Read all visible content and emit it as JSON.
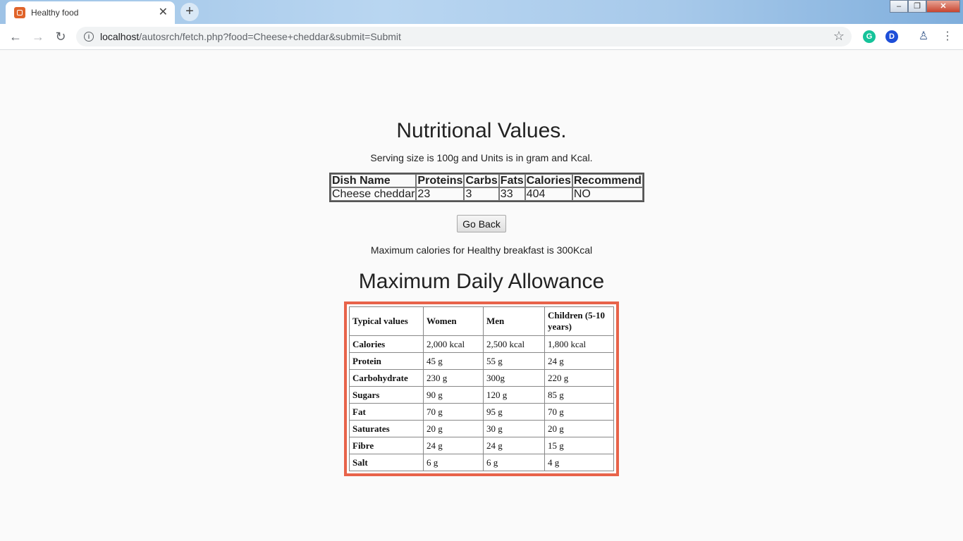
{
  "browser": {
    "tab_title": "Healthy food",
    "url_host": "localhost",
    "url_path": "/autosrch/fetch.php?food=Cheese+cheddar&submit=Submit"
  },
  "page": {
    "title": "Nutritional Values.",
    "serving_note": "Serving size is 100g and Units is in gram and Kcal.",
    "nutrition_table": {
      "headers": [
        "Dish Name",
        "Proteins",
        "Carbs",
        "Fats",
        "Calories",
        "Recommend"
      ],
      "row": [
        "Cheese cheddar",
        "23",
        "3",
        "33",
        "404",
        "NO"
      ]
    },
    "go_back_label": "Go Back",
    "max_calories_note": "Maximum calories for Healthy breakfast is 300Kcal",
    "allowance_title": "Maximum Daily Allowance",
    "allowance_table": {
      "headers": [
        "Typical values",
        "Women",
        "Men",
        "Children (5-10 years)"
      ],
      "rows": [
        [
          "Calories",
          "2,000 kcal",
          "2,500 kcal",
          "1,800 kcal"
        ],
        [
          "Protein",
          "45 g",
          "55 g",
          "24 g"
        ],
        [
          "Carbohydrate",
          "230 g",
          "300g",
          "220 g"
        ],
        [
          "Sugars",
          "90 g",
          "120 g",
          "85 g"
        ],
        [
          "Fat",
          "70 g",
          "95 g",
          "70 g"
        ],
        [
          "Saturates",
          "20 g",
          "30 g",
          "20 g"
        ],
        [
          "Fibre",
          "24 g",
          "24 g",
          "15 g"
        ],
        [
          "Salt",
          "6 g",
          "6 g",
          "4 g"
        ]
      ]
    }
  },
  "colors": {
    "allowance_border": "#e8634a",
    "page_background": "#fafafa"
  }
}
